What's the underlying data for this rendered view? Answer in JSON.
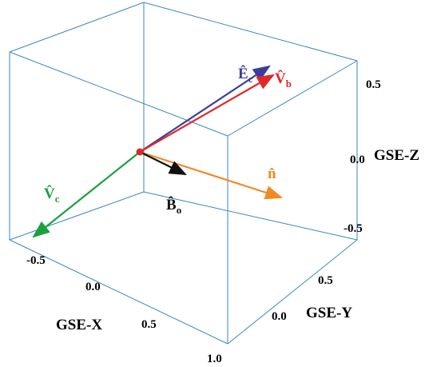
{
  "axes": {
    "x": {
      "label": "GSE-X",
      "ticks": [
        "-0.5",
        "0.0",
        "0.5",
        "1.0"
      ]
    },
    "y": {
      "label": "GSE-Y",
      "ticks": [
        "0.0",
        "0.5"
      ]
    },
    "z": {
      "label": "GSE-Z",
      "ticks": [
        "0.5",
        "0.0",
        "-0.5"
      ]
    }
  },
  "vectors": [
    {
      "letter": "Ê",
      "subscript": "c"
    },
    {
      "letter": "V̂",
      "subscript": "b"
    },
    {
      "letter": "n̂"
    },
    {
      "letter": "B̂",
      "subscript": "o"
    },
    {
      "letter": "V̂",
      "subscript": "c"
    }
  ]
}
